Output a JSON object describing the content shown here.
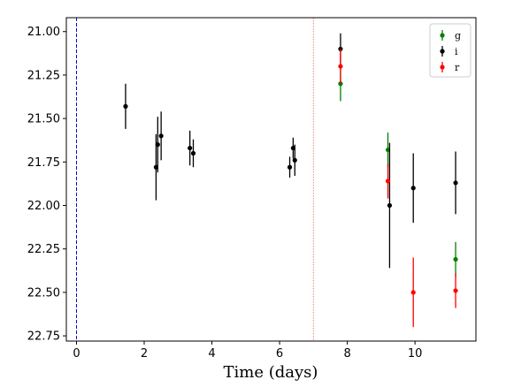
{
  "chart_data": {
    "type": "scatter",
    "title": "",
    "xlabel": "Time (days)",
    "ylabel": "",
    "xlim": [
      -0.3,
      11.8
    ],
    "ylim": [
      20.92,
      22.78
    ],
    "y_inverted": true,
    "x_ticks": [
      0,
      2,
      4,
      6,
      8,
      10
    ],
    "y_ticks": [
      21.0,
      21.25,
      21.5,
      21.75,
      22.0,
      22.25,
      22.5,
      22.75
    ],
    "y_tick_labels": [
      "21.00",
      "21.25",
      "21.50",
      "21.75",
      "22.00",
      "22.25",
      "22.50",
      "22.75"
    ],
    "grid": false,
    "legend_position": "top-right",
    "vlines": [
      {
        "x": 0,
        "color": "#0000cc",
        "style": "dashed"
      },
      {
        "x": 7,
        "color": "#f08080",
        "style": "dotted"
      }
    ],
    "series": [
      {
        "name": "g",
        "color": "#008000",
        "points": [
          {
            "x": 7.8,
            "y": 21.3,
            "err": 0.1
          },
          {
            "x": 9.2,
            "y": 21.68,
            "err": 0.1
          },
          {
            "x": 11.2,
            "y": 22.31,
            "err": 0.1
          }
        ]
      },
      {
        "name": "i",
        "color": "#000000",
        "points": [
          {
            "x": 1.45,
            "y": 21.43,
            "err": 0.13
          },
          {
            "x": 2.35,
            "y": 21.78,
            "err": 0.19
          },
          {
            "x": 2.4,
            "y": 21.65,
            "err": 0.16
          },
          {
            "x": 2.5,
            "y": 21.6,
            "err": 0.14
          },
          {
            "x": 3.35,
            "y": 21.67,
            "err": 0.1
          },
          {
            "x": 3.45,
            "y": 21.7,
            "err": 0.08
          },
          {
            "x": 6.3,
            "y": 21.78,
            "err": 0.06
          },
          {
            "x": 6.4,
            "y": 21.67,
            "err": 0.06
          },
          {
            "x": 6.45,
            "y": 21.74,
            "err": 0.09
          },
          {
            "x": 7.8,
            "y": 21.1,
            "err": 0.09
          },
          {
            "x": 9.25,
            "y": 22.0,
            "err": 0.36
          },
          {
            "x": 9.95,
            "y": 21.9,
            "err": 0.2
          },
          {
            "x": 11.2,
            "y": 21.87,
            "err": 0.18
          }
        ]
      },
      {
        "name": "r",
        "color": "#ff0000",
        "points": [
          {
            "x": 7.8,
            "y": 21.2,
            "err": 0.1
          },
          {
            "x": 9.2,
            "y": 21.86,
            "err": 0.1
          },
          {
            "x": 9.95,
            "y": 22.5,
            "err": 0.2
          },
          {
            "x": 11.2,
            "y": 22.49,
            "err": 0.1
          }
        ]
      }
    ]
  }
}
